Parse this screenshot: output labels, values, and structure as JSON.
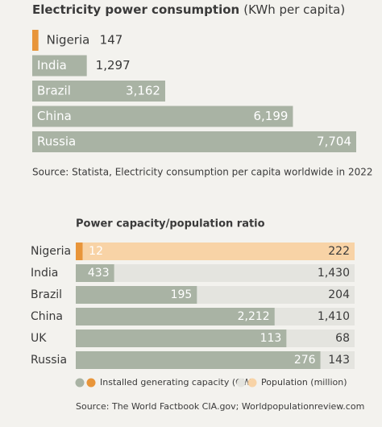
{
  "chart_data": [
    {
      "type": "bar",
      "orientation": "horizontal",
      "title": "Electricity power consumption",
      "unit": "(KWh per capita)",
      "categories": [
        "Nigeria",
        "India",
        "Brazil",
        "China",
        "Russia"
      ],
      "values": [
        147,
        1297,
        3162,
        6199,
        7704
      ],
      "value_labels": [
        "147",
        "1,297",
        "3,162",
        "6,199",
        "7,704"
      ],
      "color": "#a9b3a4",
      "highlight": "Nigeria",
      "highlight_color": "#e8953a",
      "source": "Source: Statista, Electricity consumption per capita worldwide in 2022"
    },
    {
      "type": "ratio-bar",
      "title": "Power capacity/population ratio",
      "categories": [
        "Nigeria",
        "India",
        "Brazil",
        "China",
        "UK",
        "Russia"
      ],
      "series": [
        {
          "name": "Installed generating capacity (GW)",
          "color": "#a9b3a4",
          "highlight_color": "#e8953a",
          "values": [
            12,
            433,
            195,
            2212,
            113,
            276
          ],
          "value_labels": [
            "12",
            "433",
            "195",
            "2,212",
            "113",
            "276"
          ]
        },
        {
          "name": "Population (million)",
          "color": "#e4e4df",
          "highlight_color": "#f8d3a6",
          "values": [
            222,
            1430,
            204,
            1410,
            68,
            143
          ],
          "value_labels": [
            "222",
            "1,430",
            "204",
            "1,410",
            "68",
            "143"
          ]
        }
      ],
      "highlight": "Nigeria",
      "source": "Source: The World Factbook CIA.gov; Worldpopulationreview.com"
    }
  ]
}
